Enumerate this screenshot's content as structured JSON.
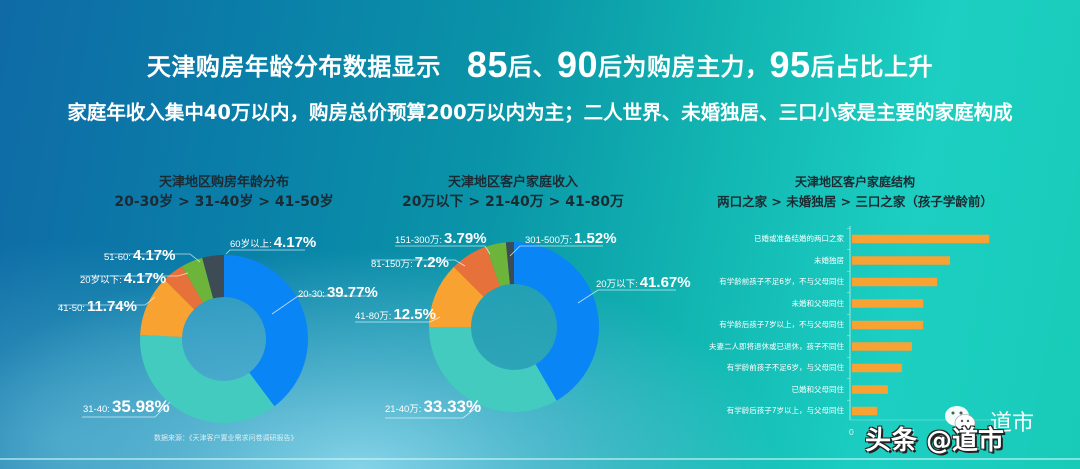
{
  "header": {
    "title_prefix": "天津购房年龄分布数据显示",
    "title_85": "85",
    "title_85_suffix": "后、",
    "title_90": "90",
    "title_90_suffix": "后为购房主力，",
    "title_95": "95",
    "title_95_suffix": "后占比上升",
    "subtitle": "家庭年收入集中40万以内，购房总价预算200万以内为主；二人世界、未婚独居、三口小家是主要的家庭构成"
  },
  "source_note": "数据来源：《天津客户置业需求问卷调研报告》",
  "watermark": {
    "text": "头条 @道市",
    "secondary": "道市"
  },
  "colors": {
    "blue": "#0a85f5",
    "teal": "#44cbbf",
    "orange": "#f7a231",
    "red_orange": "#e6713a",
    "green": "#6db43a",
    "dark": "#3d4b55",
    "bar": "#f7a233"
  },
  "chart_data": [
    {
      "type": "pie",
      "donut": true,
      "title": "天津地区购房年龄分布",
      "subtitle": "20-30岁 > 31-40岁 > 41-50岁",
      "categories": [
        "20-30",
        "31-40",
        "41-50",
        "20岁以下",
        "51-60",
        "60岁以上"
      ],
      "values": [
        39.77,
        35.98,
        11.74,
        4.17,
        4.17,
        4.17
      ],
      "labels": [
        "39.77%",
        "35.98%",
        "11.74%",
        "4.17%",
        "4.17%",
        "4.17%"
      ],
      "colors": [
        "#0a85f5",
        "#44cbbf",
        "#f7a231",
        "#e6713a",
        "#6db43a",
        "#3d4b55"
      ]
    },
    {
      "type": "pie",
      "donut": true,
      "title": "天津地区客户家庭收入",
      "subtitle": "20万以下 > 21-40万 > 41-80万",
      "categories": [
        "20万以下",
        "21-40万",
        "41-80万",
        "81-150万",
        "151-300万",
        "301-500万"
      ],
      "values": [
        41.67,
        33.33,
        12.5,
        7.2,
        3.79,
        1.52
      ],
      "labels": [
        "41.67%",
        "33.33%",
        "12.5%",
        "7.2%",
        "3.79%",
        "1.52%"
      ],
      "colors": [
        "#0a85f5",
        "#44cbbf",
        "#f7a231",
        "#e6713a",
        "#6db43a",
        "#3d4b55"
      ]
    },
    {
      "type": "bar",
      "orientation": "horizontal",
      "title": "天津地区客户家庭结构",
      "subtitle": "两口之家 > 未婚独居 > 三口之家（孩子学龄前）",
      "categories": [
        "已婚或准备结婚的两口之家",
        "未婚独居",
        "有学龄前孩子不足6岁，不与父母同住",
        "未婚和父母同住",
        "有学龄后孩子7岁以上，不与父母同住",
        "夫妻二人即将退休或已退休，孩子不同住",
        "有学龄前孩子不足6岁，与父母同住",
        "已婚和父母同住",
        "有学龄后孩子7岁以上，与父母同住"
      ],
      "values": [
        24.5,
        17.5,
        15.2,
        12.7,
        12.7,
        10.7,
        8.9,
        6.4,
        4.5
      ],
      "x_ticks": [
        "0",
        "5",
        "10"
      ],
      "xlim": [
        0,
        25
      ],
      "grid": false
    }
  ],
  "donut_labels": {
    "age": [
      {
        "key": "20-30:",
        "value": "39.77%"
      },
      {
        "key": "31-40:",
        "value": "35.98%"
      },
      {
        "key": "41-50:",
        "value": "11.74%"
      },
      {
        "key": "20岁以下:",
        "value": "4.17%"
      },
      {
        "key": "51-60:",
        "value": "4.17%"
      },
      {
        "key": "60岁以上:",
        "value": "4.17%"
      }
    ],
    "income": [
      {
        "key": "20万以下:",
        "value": "41.67%"
      },
      {
        "key": "21-40万:",
        "value": "33.33%"
      },
      {
        "key": "41-80万:",
        "value": "12.5%"
      },
      {
        "key": "81-150万:",
        "value": "7.2%"
      },
      {
        "key": "151-300万:",
        "value": "3.79%"
      },
      {
        "key": "301-500万:",
        "value": "1.52%"
      }
    ]
  }
}
